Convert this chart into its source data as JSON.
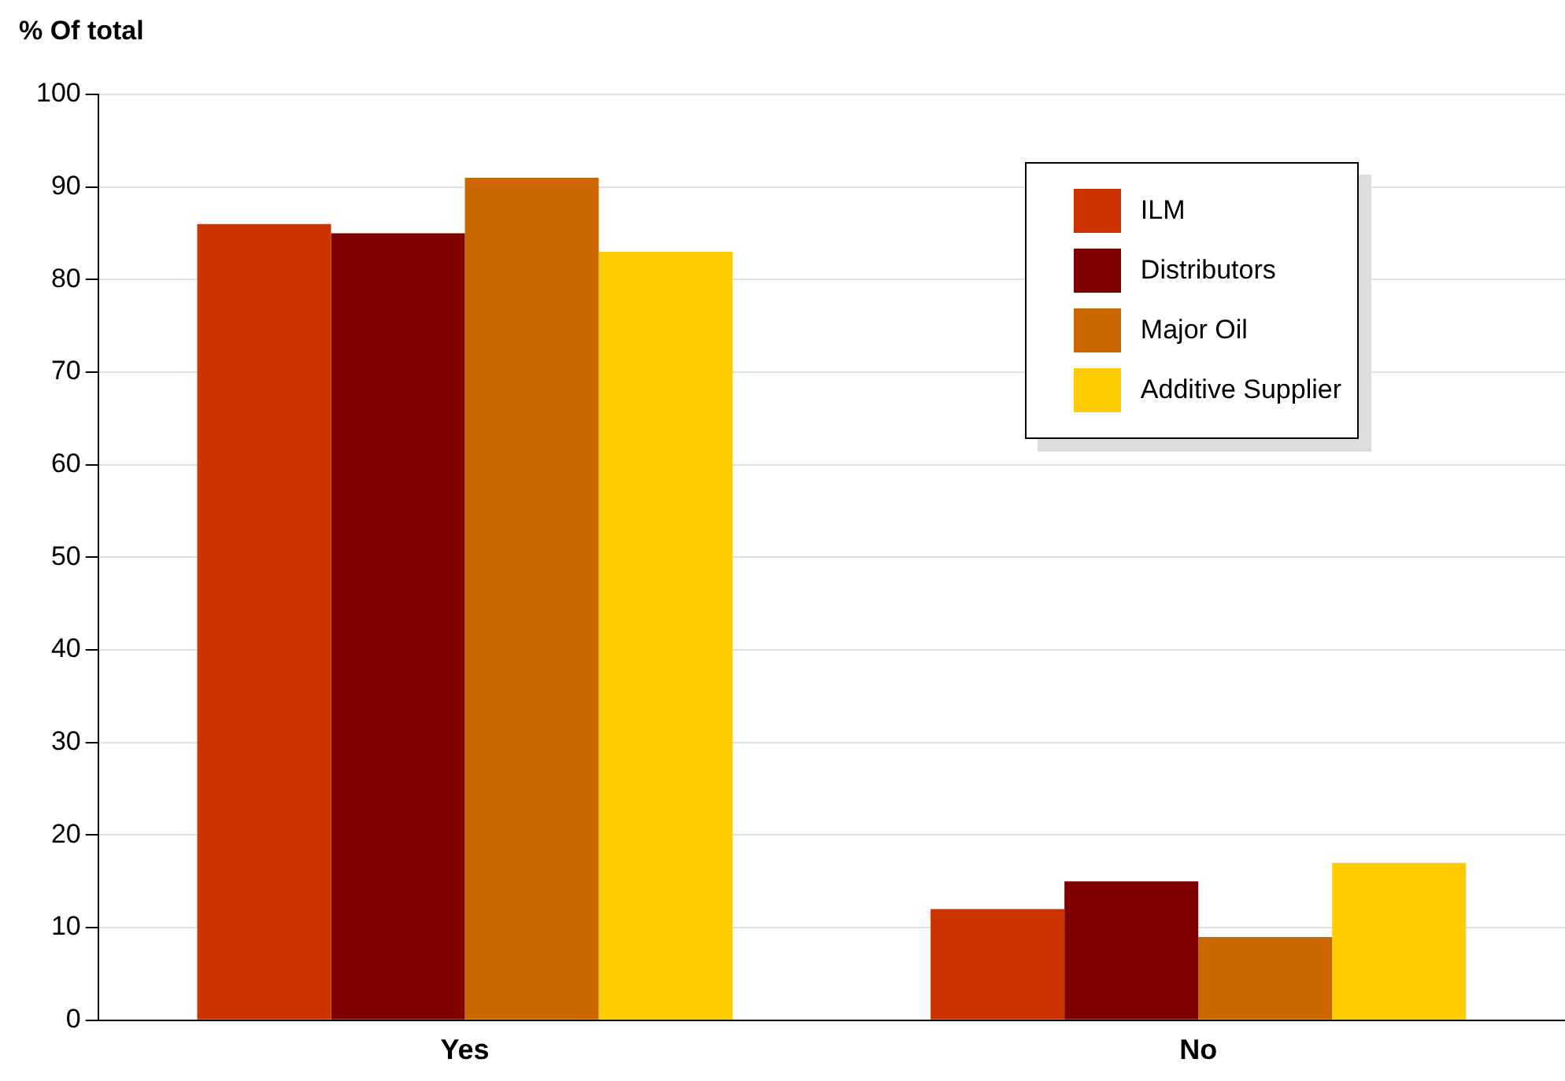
{
  "chart_data": {
    "type": "bar",
    "ylabel": "% Of total",
    "categories": [
      "Yes",
      "No"
    ],
    "series": [
      {
        "name": "ILM",
        "color": "#cc3300",
        "values": [
          86,
          12
        ]
      },
      {
        "name": "Distributors",
        "color": "#800000",
        "values": [
          85,
          15
        ]
      },
      {
        "name": "Major Oil",
        "color": "#cc6600",
        "values": [
          91,
          9
        ]
      },
      {
        "name": "Additive Supplier",
        "color": "#ffcc00",
        "values": [
          83,
          17
        ]
      }
    ],
    "ylim": [
      0,
      100
    ],
    "yticks": [
      0,
      10,
      20,
      30,
      40,
      50,
      60,
      70,
      80,
      90,
      100
    ],
    "grid": "y",
    "legend": "top right"
  }
}
